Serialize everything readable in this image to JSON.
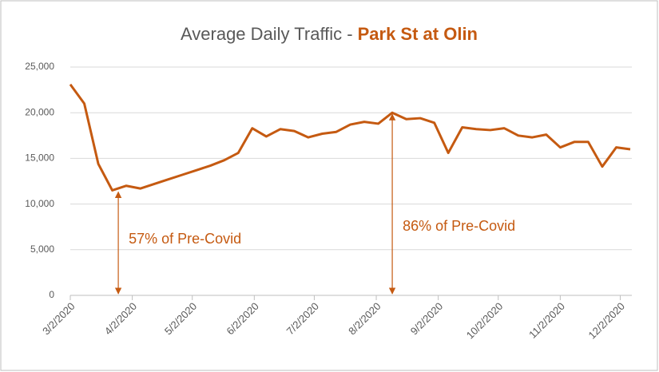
{
  "chart_data": {
    "type": "line",
    "title": {
      "text": "Average Daily Traffic -",
      "highlight": "Park St at Olin"
    },
    "x": [
      "2020-03-02",
      "2020-03-09",
      "2020-03-16",
      "2020-03-23",
      "2020-03-30",
      "2020-04-06",
      "2020-04-13",
      "2020-04-20",
      "2020-04-27",
      "2020-05-04",
      "2020-05-11",
      "2020-05-18",
      "2020-05-25",
      "2020-06-01",
      "2020-06-08",
      "2020-06-15",
      "2020-06-22",
      "2020-06-29",
      "2020-07-06",
      "2020-07-13",
      "2020-07-20",
      "2020-07-27",
      "2020-08-03",
      "2020-08-10",
      "2020-08-17",
      "2020-08-24",
      "2020-08-31",
      "2020-09-07",
      "2020-09-14",
      "2020-09-21",
      "2020-09-28",
      "2020-10-05",
      "2020-10-12",
      "2020-10-19",
      "2020-10-26",
      "2020-11-02",
      "2020-11-09",
      "2020-11-16",
      "2020-11-23",
      "2020-11-30",
      "2020-12-07"
    ],
    "series": [
      {
        "name": "Average Daily Traffic",
        "color": "#c55a11",
        "values": [
          23100,
          21000,
          14400,
          11500,
          12000,
          11700,
          12200,
          12700,
          13200,
          13700,
          14200,
          14800,
          15600,
          18300,
          17400,
          18200,
          18000,
          17300,
          17700,
          17900,
          18700,
          19000,
          18800,
          20000,
          19300,
          19400,
          18900,
          15600,
          18400,
          18200,
          18100,
          18300,
          17500,
          17300,
          17600,
          16200,
          16800,
          16800,
          14100,
          16200,
          16000
        ]
      }
    ],
    "xlim": [
      "2020-03-02",
      "2020-12-07"
    ],
    "xticks": [
      {
        "value": "2020-03-02",
        "label": "3/2/2020"
      },
      {
        "value": "2020-04-02",
        "label": "4/2/2020"
      },
      {
        "value": "2020-05-02",
        "label": "5/2/2020"
      },
      {
        "value": "2020-06-02",
        "label": "6/2/2020"
      },
      {
        "value": "2020-07-02",
        "label": "7/2/2020"
      },
      {
        "value": "2020-08-02",
        "label": "8/2/2020"
      },
      {
        "value": "2020-09-02",
        "label": "9/2/2020"
      },
      {
        "value": "2020-10-02",
        "label": "10/2/2020"
      },
      {
        "value": "2020-11-02",
        "label": "11/2/2020"
      },
      {
        "value": "2020-12-02",
        "label": "12/2/2020"
      }
    ],
    "ylim": [
      0,
      25000
    ],
    "yticks": [
      0,
      {
        "value": 5000,
        "label": "5,000"
      },
      {
        "value": 10000,
        "label": "10,000"
      },
      {
        "value": 15000,
        "label": "15,000"
      },
      {
        "value": 20000,
        "label": "20,000"
      },
      {
        "value": 25000,
        "label": "25,000"
      }
    ],
    "grid": true,
    "annotations": [
      {
        "text": "57% of Pre-Covid",
        "x": "2020-03-26",
        "y": 11500
      },
      {
        "text": "86% of Pre-Covid",
        "x": "2020-08-10",
        "y": 20000
      }
    ]
  }
}
